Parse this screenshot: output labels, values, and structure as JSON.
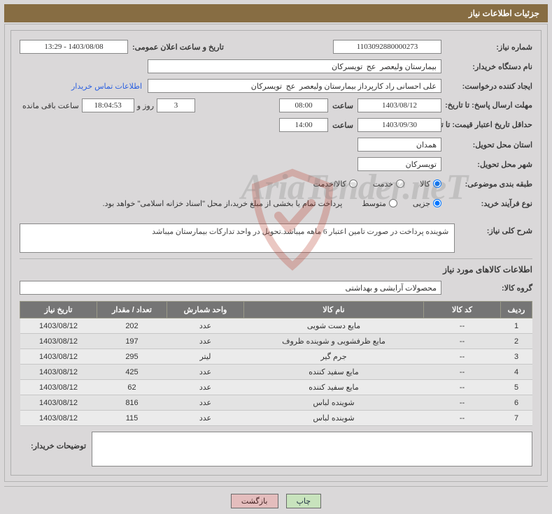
{
  "title": "جزئیات اطلاعات نیاز",
  "labels": {
    "need_no": "شماره نیاز:",
    "announce_dt": "تاریخ و ساعت اعلان عمومی:",
    "buyer_org": "نام دستگاه خریدار:",
    "requester": "ایجاد کننده درخواست:",
    "buyer_contact": "اطلاعات تماس خریدار",
    "reply_deadline": "مهلت ارسال پاسخ: تا تاریخ:",
    "hour_word": "ساعت",
    "day_and": "روز و",
    "remaining": "ساعت باقی مانده",
    "price_valid": "حداقل تاریخ اعتبار قیمت: تا تاریخ:",
    "deliver_province": "استان محل تحویل:",
    "deliver_city": "شهر محل تحویل:",
    "category": "طبقه بندی موضوعی:",
    "cat_goods": "کالا",
    "cat_service": "خدمت",
    "cat_goods_service": "کالا/خدمت",
    "process_type": "نوع فرآیند خرید:",
    "proc_small": "جزیی",
    "proc_medium": "متوسط",
    "payment_note": "پرداخت تمام یا بخشی از مبلغ خرید،از محل \"اسناد خزانه اسلامی\" خواهد بود.",
    "need_desc_label": "شرح کلی نیاز:",
    "items_header": "اطلاعات کالاهای مورد نیاز",
    "goods_group": "گروه کالا:",
    "buyer_notes": "توضیحات خریدار:"
  },
  "values": {
    "need_no": "1103092880000273",
    "announce_dt": "1403/08/08 - 13:29",
    "buyer_org": "بیمارستان ولیعصر  عج  تویسرکان",
    "requester": "علی احسانی راد کارپرداز بیمارستان ولیعصر  عج  تویسرکان",
    "reply_date": "1403/08/12",
    "reply_time": "08:00",
    "remaining_days": "3",
    "remaining_time": "18:04:53",
    "price_valid_date": "1403/09/30",
    "price_valid_time": "14:00",
    "deliver_province": "همدان",
    "deliver_city": "تویسرکان",
    "need_desc": "شوینده پرداخت در صورت تامین اعتبار 6 ماهه میباشد.تحویل در واحد تدارکات بیمارستان میباشد",
    "goods_group": "محصولات آرایشی و بهداشتی",
    "buyer_notes": ""
  },
  "table": {
    "headers": {
      "row": "ردیف",
      "code": "کد کالا",
      "name": "نام کالا",
      "unit": "واحد شمارش",
      "qty": "تعداد / مقدار",
      "need_date": "تاریخ نیاز"
    },
    "rows": [
      {
        "row": "1",
        "code": "--",
        "name": "مایع دست شویی",
        "unit": "عدد",
        "qty": "202",
        "date": "1403/08/12"
      },
      {
        "row": "2",
        "code": "--",
        "name": "مایع ظرفشویی و شوینده ظروف",
        "unit": "عدد",
        "qty": "197",
        "date": "1403/08/12"
      },
      {
        "row": "3",
        "code": "--",
        "name": "جرم گیر",
        "unit": "لیتر",
        "qty": "295",
        "date": "1403/08/12"
      },
      {
        "row": "4",
        "code": "--",
        "name": "مایع سفید کننده",
        "unit": "عدد",
        "qty": "425",
        "date": "1403/08/12"
      },
      {
        "row": "5",
        "code": "--",
        "name": "مایع سفید کننده",
        "unit": "عدد",
        "qty": "62",
        "date": "1403/08/12"
      },
      {
        "row": "6",
        "code": "--",
        "name": "شوینده لباس",
        "unit": "عدد",
        "qty": "816",
        "date": "1403/08/12"
      },
      {
        "row": "7",
        "code": "--",
        "name": "شوینده لباس",
        "unit": "عدد",
        "qty": "115",
        "date": "1403/08/12"
      }
    ]
  },
  "buttons": {
    "print": "چاپ",
    "back": "بازگشت"
  },
  "watermark": "AriaTender.neT",
  "colors": {
    "title_bg": "#876d43",
    "page_bg": "#dad8d9",
    "th_bg": "#757575",
    "link": "#2a5fe0",
    "btn_print": "#c8e3bd",
    "btn_back": "#e4bdbd"
  },
  "col_widths": {
    "row": "45px",
    "code": "110px",
    "name": "auto",
    "unit": "110px",
    "qty": "100px",
    "date": "110px"
  }
}
